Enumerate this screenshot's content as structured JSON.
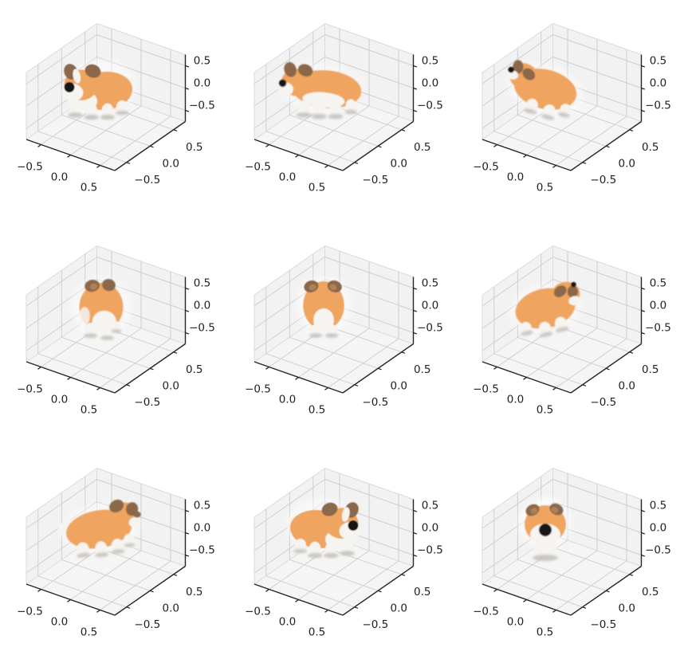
{
  "figure": {
    "background": "#ffffff",
    "rows": 3,
    "cols": 3,
    "description": "3x3 grid of matplotlib-style 3D axes, each rendering the same corgi dog point-cloud model at a different yaw rotation"
  },
  "chart_data": {
    "type": "scatter",
    "projection": "3d",
    "grid": true,
    "legend": false,
    "title": "",
    "subplots": [
      {
        "row": 1,
        "col": 1,
        "pose": "front-left three-quarter view, black nose toward lower-left"
      },
      {
        "row": 1,
        "col": 2,
        "pose": "left profile, facing left, nose at left tip"
      },
      {
        "row": 1,
        "col": 3,
        "pose": "back-left view from above, facing upper-left, white tail visible"
      },
      {
        "row": 2,
        "col": 1,
        "pose": "rear three-quarter view from left, ears on top, white rump"
      },
      {
        "row": 2,
        "col": 2,
        "pose": "direct rear view, facing away, white rump centered"
      },
      {
        "row": 2,
        "col": 3,
        "pose": "back-right view from above, facing upper-right"
      },
      {
        "row": 3,
        "col": 1,
        "pose": "right profile from above, facing right, white tail at left"
      },
      {
        "row": 3,
        "col": 2,
        "pose": "front-right three-quarter view, black nose toward lower-right"
      },
      {
        "row": 3,
        "col": 3,
        "pose": "direct front view, facing viewer, black nose centered"
      }
    ],
    "axes": {
      "x": {
        "ticks": [
          -0.5,
          0.0,
          0.5
        ],
        "tick_labels": [
          "−0.5",
          "0.0",
          "0.5"
        ],
        "lim": [
          -0.75,
          0.75
        ]
      },
      "y": {
        "ticks": [
          -0.5,
          0.0,
          0.5
        ],
        "tick_labels": [
          "−0.5",
          "0.0",
          "0.5"
        ],
        "lim": [
          -0.75,
          0.75
        ]
      },
      "z": {
        "ticks": [
          -0.5,
          0.0,
          0.5
        ],
        "tick_labels": [
          "−0.5",
          "0.0",
          "0.5"
        ],
        "lim": [
          -0.75,
          0.75
        ]
      }
    }
  },
  "model_colors": {
    "coat_orange": "#EFA45F",
    "ear_brown": "#8A6748",
    "ear_inner_brown": "#AD8259",
    "fur_white": "#F6F4F0",
    "nose_black": "#191919",
    "paw_shadow_grey": "#C6C3BE",
    "halo_white": "#FFFFFF"
  },
  "axes_style": {
    "pane_wall": "#F2F2F2",
    "pane_floor": "#F5F5F5",
    "pane_edge": "#DBDBDB",
    "grid_line": "#CFCFCF",
    "spine": "#262626",
    "tick_label_color": "#1F1F1F",
    "tick_font_size_px": 13.5
  }
}
